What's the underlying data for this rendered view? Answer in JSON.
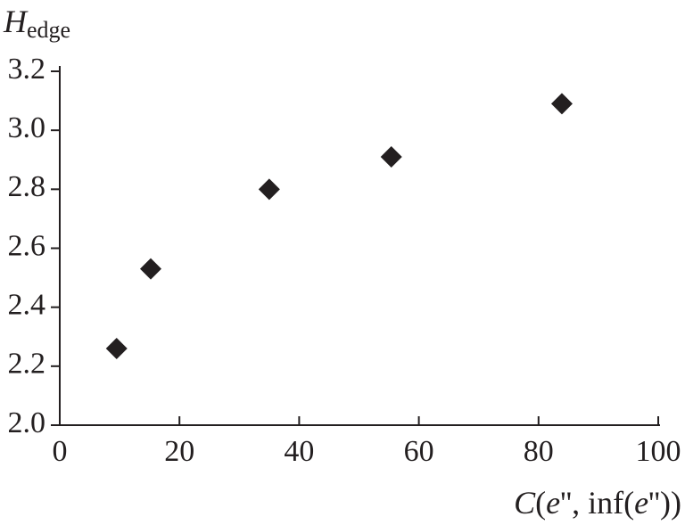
{
  "chart_data": {
    "type": "scatter",
    "ylabel": {
      "symbol": "H",
      "subscript": "edge"
    },
    "xlabel": [
      "C",
      "(",
      "e",
      "'', inf(",
      "e",
      "''))"
    ],
    "series": [
      {
        "color": "#231f20",
        "marker": "diamond",
        "x": [
          9.5,
          15.2,
          35.0,
          55.4,
          83.9
        ],
        "values": [
          2.26,
          2.53,
          2.8,
          2.91,
          3.09
        ]
      }
    ],
    "xlim": [
      0,
      100
    ],
    "xticks": [
      0,
      20,
      40,
      60,
      80,
      100
    ],
    "ylim": [
      2.0,
      3.2
    ],
    "yticks": [
      {
        "value": 2.0,
        "label": "2.0"
      },
      2.2,
      2.4,
      2.6,
      2.8,
      {
        "value": 3.0,
        "label": "3.0"
      },
      3.2
    ],
    "grid": false
  }
}
